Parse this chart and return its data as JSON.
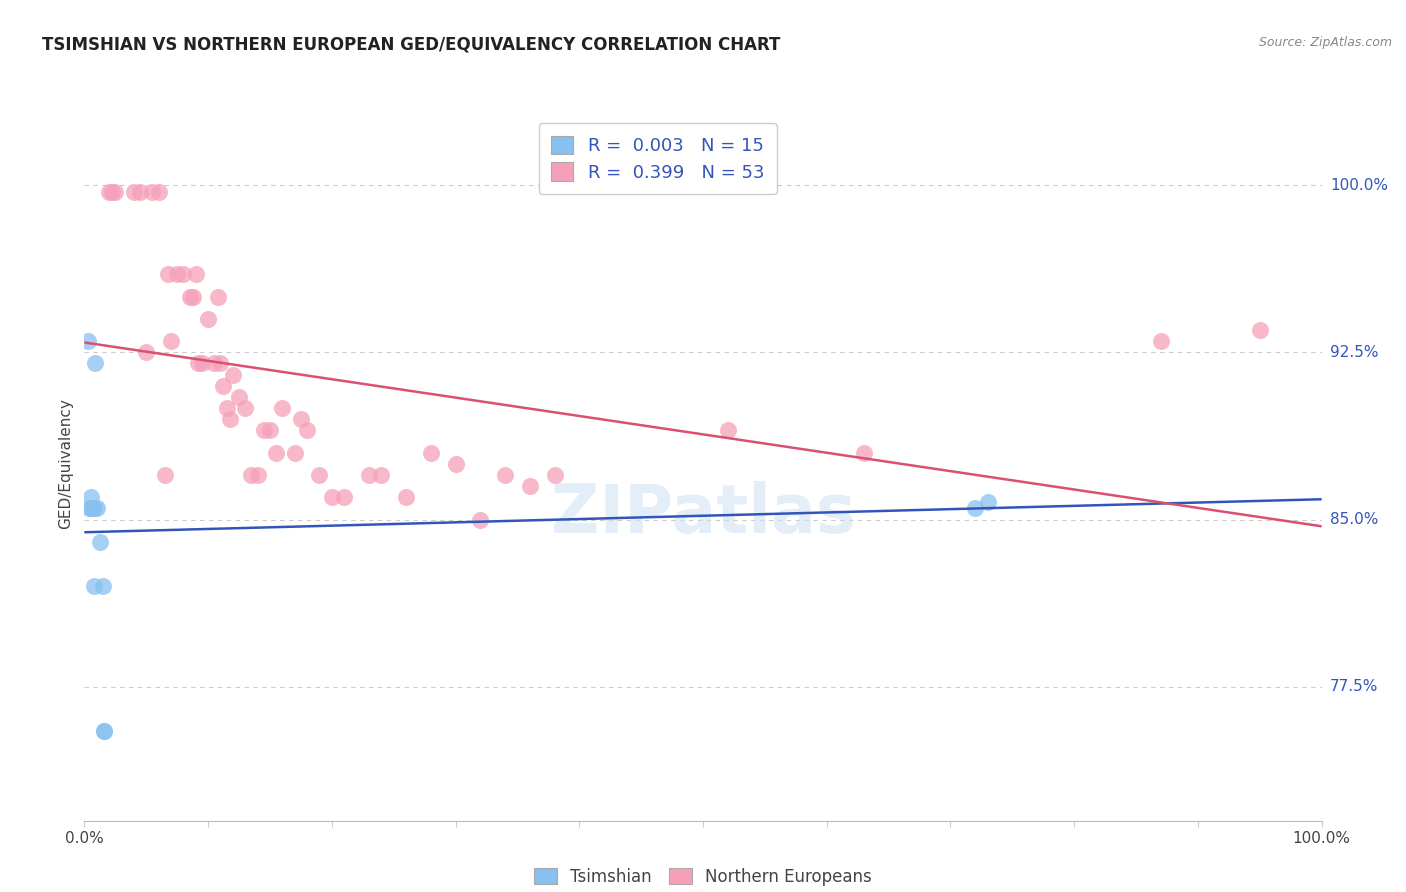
{
  "title": "TSIMSHIAN VS NORTHERN EUROPEAN GED/EQUIVALENCY CORRELATION CHART",
  "source": "Source: ZipAtlas.com",
  "ylabel": "GED/Equivalency",
  "y_ticks": [
    77.5,
    85.0,
    92.5,
    100.0
  ],
  "x_range": [
    0.0,
    1.0
  ],
  "y_range": [
    0.715,
    1.035
  ],
  "legend_label1": "Tsimshian",
  "legend_label2": "Northern Europeans",
  "R1": 0.003,
  "N1": 15,
  "R2": 0.399,
  "N2": 53,
  "color_blue": "#88c0f0",
  "color_pink": "#f5a0b8",
  "color_blue_line": "#3355bb",
  "color_pink_line": "#d95070",
  "color_blue_text": "#3355bb",
  "color_gray_text": "#444444",
  "tsimshian_x": [
    0.003,
    0.004,
    0.005,
    0.005,
    0.007,
    0.008,
    0.008,
    0.009,
    0.01,
    0.013,
    0.015,
    0.016,
    0.016,
    0.72,
    0.73
  ],
  "tsimshian_y": [
    0.93,
    0.855,
    0.855,
    0.86,
    0.855,
    0.82,
    0.855,
    0.92,
    0.855,
    0.84,
    0.82,
    0.755,
    0.755,
    0.855,
    0.858
  ],
  "northern_x": [
    0.02,
    0.022,
    0.025,
    0.04,
    0.045,
    0.05,
    0.055,
    0.06,
    0.065,
    0.068,
    0.07,
    0.075,
    0.08,
    0.085,
    0.088,
    0.09,
    0.092,
    0.095,
    0.1,
    0.105,
    0.108,
    0.11,
    0.112,
    0.115,
    0.118,
    0.12,
    0.125,
    0.13,
    0.135,
    0.14,
    0.145,
    0.15,
    0.155,
    0.16,
    0.17,
    0.175,
    0.18,
    0.19,
    0.2,
    0.21,
    0.23,
    0.24,
    0.26,
    0.28,
    0.3,
    0.32,
    0.34,
    0.36,
    0.38,
    0.52,
    0.63,
    0.87,
    0.95
  ],
  "northern_y": [
    0.997,
    0.997,
    0.997,
    0.997,
    0.997,
    0.925,
    0.997,
    0.997,
    0.87,
    0.96,
    0.93,
    0.96,
    0.96,
    0.95,
    0.95,
    0.96,
    0.92,
    0.92,
    0.94,
    0.92,
    0.95,
    0.92,
    0.91,
    0.9,
    0.895,
    0.915,
    0.905,
    0.9,
    0.87,
    0.87,
    0.89,
    0.89,
    0.88,
    0.9,
    0.88,
    0.895,
    0.89,
    0.87,
    0.86,
    0.86,
    0.87,
    0.87,
    0.86,
    0.88,
    0.875,
    0.85,
    0.87,
    0.865,
    0.87,
    0.89,
    0.88,
    0.93,
    0.935
  ]
}
